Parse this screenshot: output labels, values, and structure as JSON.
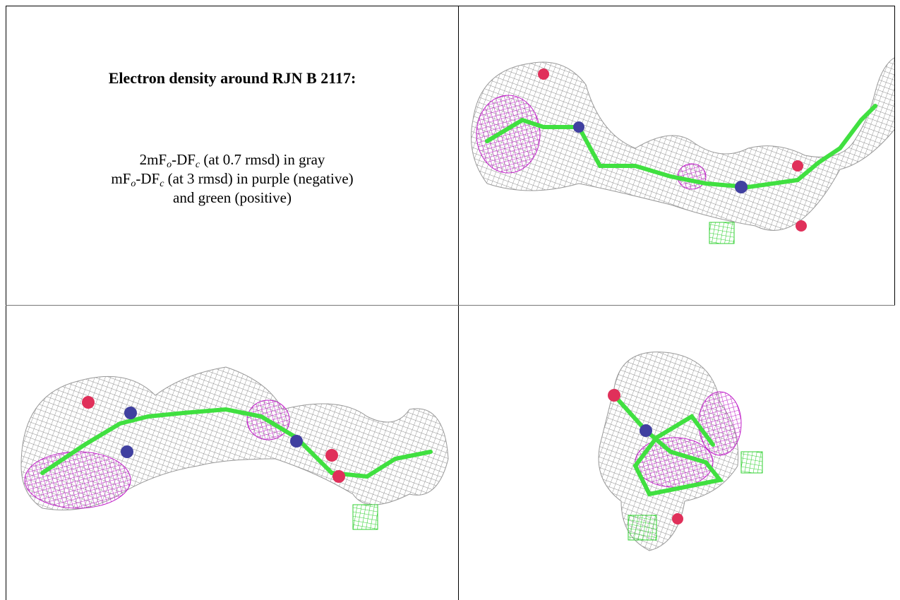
{
  "caption": {
    "title": "Electron density around RJN B 2117:",
    "lines": [
      [
        "2mF",
        "o",
        "-DF",
        "c",
        " (at 0.7 rmsd) in gray"
      ],
      [
        "mF",
        "o",
        "-DF",
        "c",
        " (at 3 rmsd) in purple (negative)"
      ],
      [
        "and green (positive)"
      ]
    ]
  }
}
